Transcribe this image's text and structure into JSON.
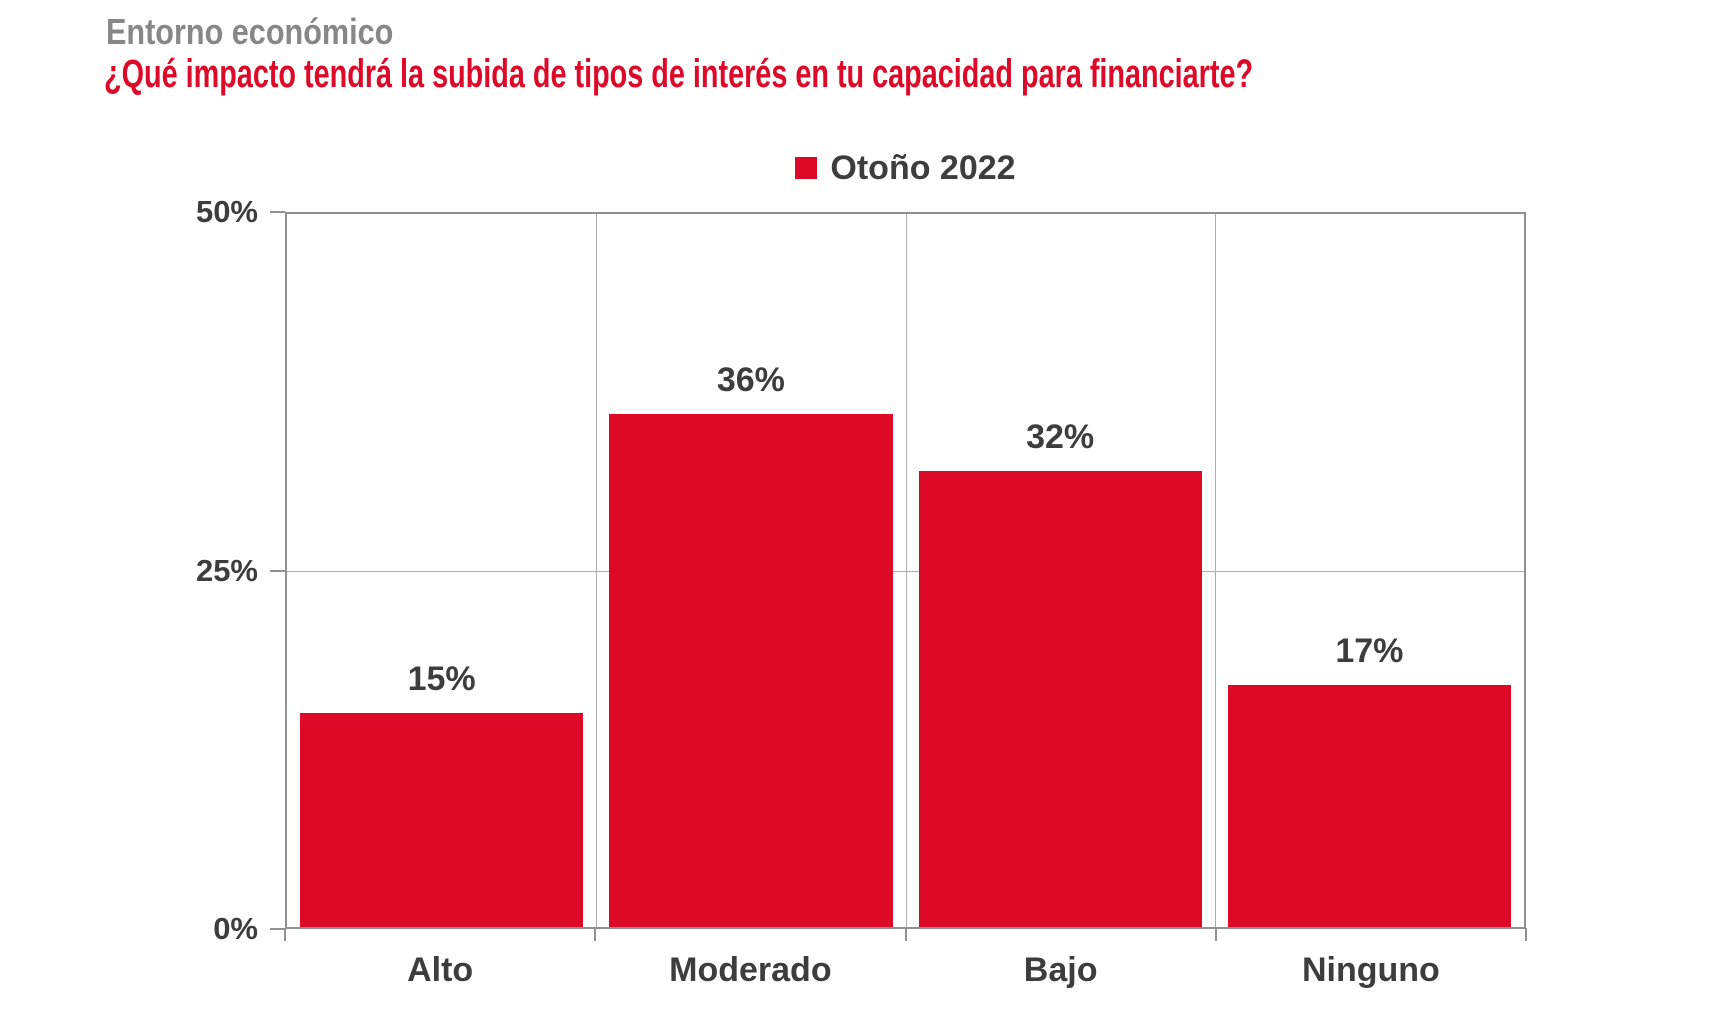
{
  "header": {
    "kicker": "Entorno económico",
    "title": "¿Qué impacto tendrá la subida de tipos de interés en tu capacidad para financiarte?"
  },
  "chart_data": {
    "type": "bar",
    "title": "¿Qué impacto tendrá la subida de tipos de interés en tu capacidad para financiarte?",
    "kicker": "Entorno económico",
    "categories": [
      "Alto",
      "Moderado",
      "Bajo",
      "Ninguno"
    ],
    "series": [
      {
        "name": "Otoño 2022",
        "color": "#DC0A28",
        "values": [
          15,
          36,
          32,
          17
        ]
      }
    ],
    "data_labels": [
      "15%",
      "36%",
      "32%",
      "17%"
    ],
    "value_suffix": "%",
    "ylim": [
      0,
      50
    ],
    "yticks": [
      {
        "label": "0%",
        "value": 0
      },
      {
        "label": "25%",
        "value": 25
      },
      {
        "label": "50%",
        "value": 50
      }
    ],
    "grid": true,
    "legend_position": "top-center"
  },
  "colors": {
    "bar_red": "#DC0A28",
    "title_red": "#DC0A28",
    "kicker_gray": "#878787",
    "text_dark": "#3D3D3D",
    "grid_strong": "#919191",
    "grid_light": "#ADADAD",
    "background": "#FFFFFF"
  }
}
